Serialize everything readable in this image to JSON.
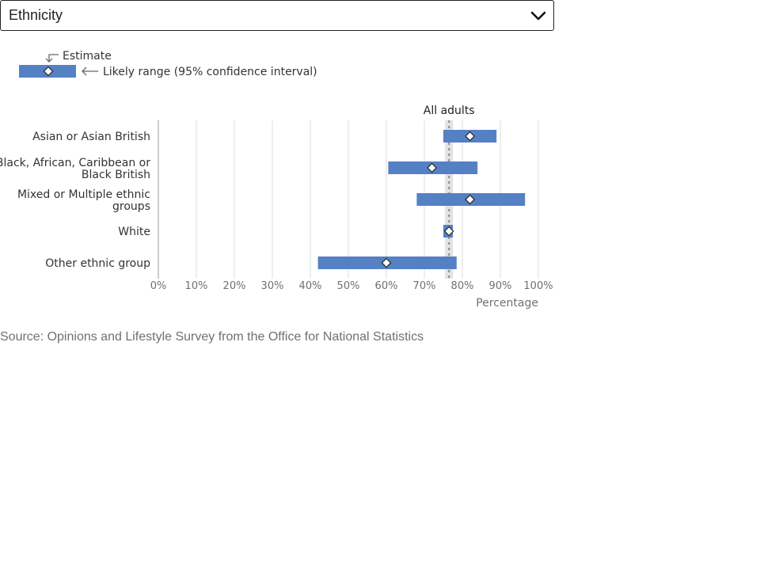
{
  "dropdown": {
    "selected": "Ethnicity",
    "icon": "chevron-down-icon"
  },
  "legend": {
    "estimate_label": "Estimate",
    "range_label": "Likely range (95% confidence interval)"
  },
  "chart_data": {
    "type": "bar",
    "orientation": "horizontal",
    "subtype": "range-with-estimate",
    "categories": [
      [
        "Asian or Asian British"
      ],
      [
        "Black, African, Caribbean or",
        "Black British"
      ],
      [
        "Mixed or Multiple ethnic",
        "groups"
      ],
      [
        "White"
      ],
      [
        "Other ethnic group"
      ]
    ],
    "series": [
      {
        "estimate": 82,
        "low": 75,
        "high": 89
      },
      {
        "estimate": 72,
        "low": 60.5,
        "high": 84
      },
      {
        "estimate": 82,
        "low": 68,
        "high": 96.5
      },
      {
        "estimate": 76.5,
        "low": 75,
        "high": 77.5
      },
      {
        "estimate": 60,
        "low": 42,
        "high": 78.5
      }
    ],
    "reference_line": {
      "label": "All adults",
      "value": 76.5
    },
    "xlabel": "Percentage",
    "ylabel": "",
    "xlim": [
      0,
      100
    ],
    "xticks": [
      "0%",
      "10%",
      "20%",
      "30%",
      "40%",
      "50%",
      "60%",
      "70%",
      "80%",
      "90%",
      "100%"
    ],
    "grid": true,
    "colors": {
      "bar": "#5580c4",
      "reference": "#8a8a8a",
      "reference_band": "#e2e2e2"
    }
  },
  "source": "Source: Opinions and Lifestyle Survey from the Office for National Statistics"
}
